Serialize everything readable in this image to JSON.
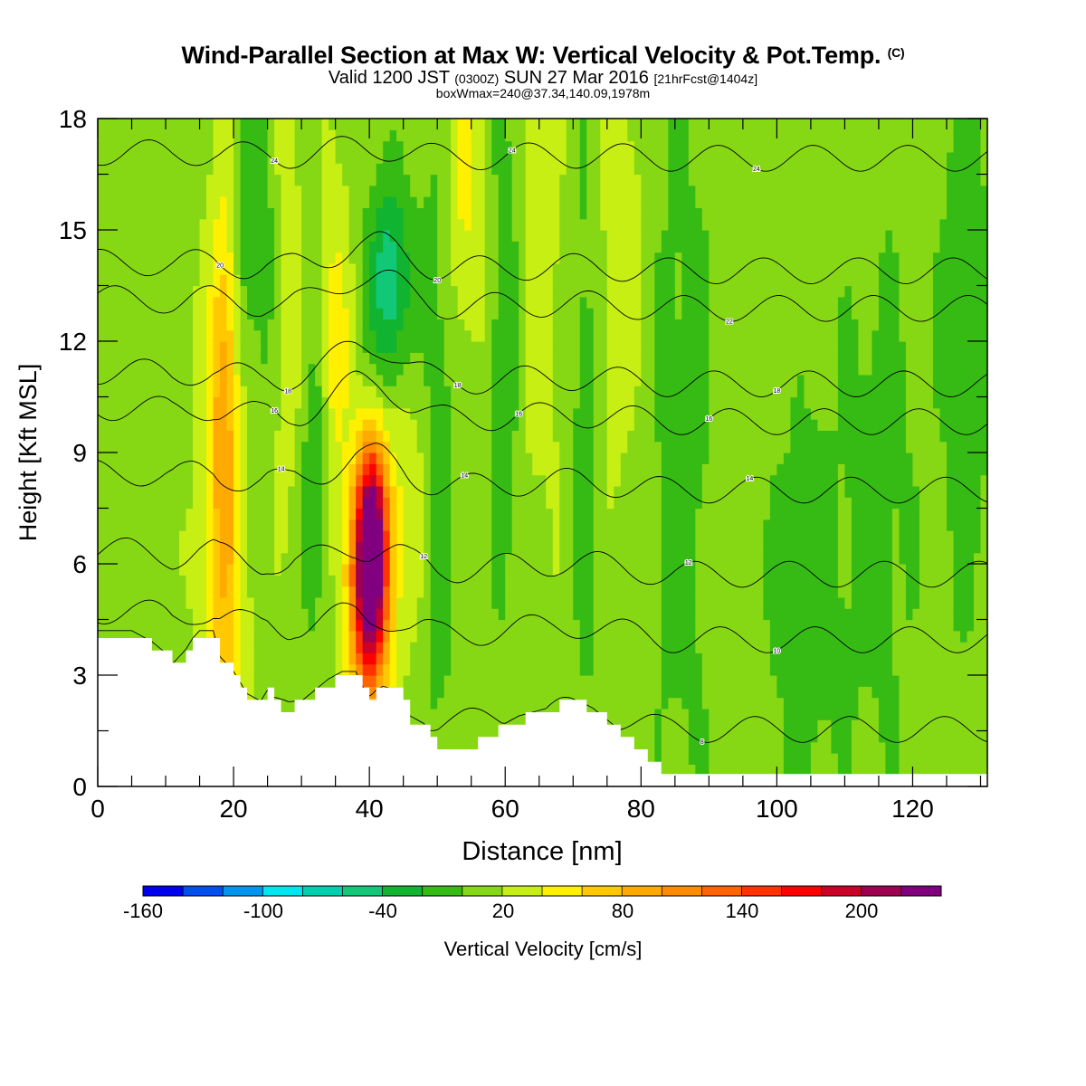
{
  "chart_data": {
    "type": "heatmap",
    "title": "Wind-Parallel Section at Max W: Vertical Velocity & Pot.Temp.",
    "copyright_mark": "(C)",
    "subtitle": {
      "valid_prefix": "Valid 1200 JST",
      "utc": "(0300Z)",
      "valid_date": "SUN 27 Mar 2016",
      "forecast": "[21hrFcst@1404z]"
    },
    "box_info": "boxWmax=240@37.34,140.09,1978m",
    "xlabel": "Distance [nm]",
    "ylabel": "Height [Kft MSL]",
    "xlim": [
      0,
      131
    ],
    "ylim": [
      0,
      18
    ],
    "x_ticks": [
      "0",
      "20",
      "40",
      "60",
      "80",
      "100",
      "120"
    ],
    "y_ticks": [
      "0",
      "3",
      "6",
      "9",
      "12",
      "15",
      "18"
    ],
    "colorbar": {
      "title": "Vertical Velocity [cm/s]",
      "tick_labels": [
        "-160",
        "-100",
        "-40",
        "20",
        "80",
        "140",
        "200"
      ],
      "levels": [
        -160,
        -140,
        -120,
        -100,
        -80,
        -60,
        -40,
        -20,
        0,
        20,
        40,
        60,
        80,
        100,
        120,
        140,
        160,
        180,
        200,
        220,
        240
      ],
      "colors": [
        "#0000f0",
        "#0050f0",
        "#0096f0",
        "#00e6f0",
        "#00d0b0",
        "#10c878",
        "#10b430",
        "#36bb14",
        "#87d814",
        "#c8ef14",
        "#fff000",
        "#ffc800",
        "#ffaa00",
        "#ff8c00",
        "#ff6400",
        "#ff3200",
        "#ff0000",
        "#cd0028",
        "#a00050",
        "#800080"
      ]
    },
    "terrain_kft": [
      [
        0,
        4.1
      ],
      [
        5,
        4.1
      ],
      [
        6,
        4.0
      ],
      [
        8,
        3.8
      ],
      [
        10,
        3.5
      ],
      [
        11,
        3.2
      ],
      [
        13,
        3.6
      ],
      [
        14,
        3.9
      ],
      [
        15,
        4.1
      ],
      [
        17,
        4.1
      ],
      [
        18,
        3.4
      ],
      [
        20,
        3.0
      ],
      [
        21,
        2.7
      ],
      [
        22,
        2.4
      ],
      [
        24,
        2.2
      ],
      [
        25,
        2.5
      ],
      [
        26,
        2.3
      ],
      [
        27,
        2.0
      ],
      [
        28,
        1.9
      ],
      [
        29,
        2.2
      ],
      [
        30,
        2.2
      ],
      [
        32,
        2.5
      ],
      [
        34,
        2.8
      ],
      [
        36,
        3.0
      ],
      [
        38,
        3.0
      ],
      [
        39,
        2.6
      ],
      [
        40,
        2.3
      ],
      [
        41,
        2.5
      ],
      [
        42,
        2.6
      ],
      [
        44,
        2.5
      ],
      [
        45,
        2.2
      ],
      [
        46,
        1.8
      ],
      [
        48,
        1.6
      ],
      [
        49,
        1.3
      ],
      [
        50,
        1.0
      ],
      [
        53,
        1.0
      ],
      [
        56,
        1.2
      ],
      [
        59,
        1.5
      ],
      [
        62,
        1.8
      ],
      [
        64,
        1.9
      ],
      [
        66,
        2.0
      ],
      [
        68,
        2.2
      ],
      [
        71,
        2.2
      ],
      [
        73,
        2.0
      ],
      [
        75,
        1.7
      ],
      [
        77,
        1.4
      ],
      [
        79,
        1.1
      ],
      [
        81,
        0.8
      ],
      [
        82,
        0.6
      ],
      [
        83,
        0.4
      ],
      [
        84,
        0.3
      ],
      [
        131,
        0.3
      ]
    ],
    "w_cells": [
      {
        "x": 18.5,
        "z": 6.0,
        "sx": 2.4,
        "sz": 5.5,
        "w": 55
      },
      {
        "x": 18.5,
        "z": 11.0,
        "sx": 1.2,
        "sz": 3.5,
        "w": 45
      },
      {
        "x": 22.0,
        "z": 15.0,
        "sx": 1.2,
        "sz": 3.5,
        "w": -30
      },
      {
        "x": 24.5,
        "z": 15.0,
        "sx": 1.0,
        "sz": 3.0,
        "w": -25
      },
      {
        "x": 28.0,
        "z": 13.0,
        "sx": 1.3,
        "sz": 4.0,
        "w": 25
      },
      {
        "x": 32.0,
        "z": 8.0,
        "sx": 1.3,
        "sz": 3.0,
        "w": -30
      },
      {
        "x": 35.0,
        "z": 12.0,
        "sx": 1.5,
        "sz": 3.0,
        "w": 40
      },
      {
        "x": 40.0,
        "z": 5.5,
        "sx": 2.0,
        "sz": 2.2,
        "w": 230
      },
      {
        "x": 40.5,
        "z": 7.3,
        "sx": 1.5,
        "sz": 1.6,
        "w": 90
      },
      {
        "x": 43.0,
        "z": 13.5,
        "sx": 2.2,
        "sz": 2.0,
        "w": -70
      },
      {
        "x": 46.0,
        "z": 8.0,
        "sx": 3.0,
        "sz": 3.0,
        "w": 25
      },
      {
        "x": 50.0,
        "z": 9.0,
        "sx": 2.0,
        "sz": 6.0,
        "w": -30
      },
      {
        "x": 54.0,
        "z": 16.0,
        "sx": 2.0,
        "sz": 3.0,
        "w": 35
      },
      {
        "x": 60.0,
        "z": 12.0,
        "sx": 1.5,
        "sz": 6.0,
        "w": -30
      },
      {
        "x": 65.0,
        "z": 14.0,
        "sx": 2.5,
        "sz": 5.0,
        "w": 20
      },
      {
        "x": 72.0,
        "z": 10.0,
        "sx": 1.5,
        "sz": 6.0,
        "w": -25
      },
      {
        "x": 77.0,
        "z": 14.0,
        "sx": 2.5,
        "sz": 4.0,
        "w": 25
      },
      {
        "x": 86.0,
        "z": 9.0,
        "sx": 4.0,
        "sz": 8.0,
        "w": -20
      },
      {
        "x": 104.0,
        "z": 5.0,
        "sx": 4.0,
        "sz": 4.0,
        "w": -25
      },
      {
        "x": 115.0,
        "z": 8.0,
        "sx": 4.0,
        "sz": 6.0,
        "w": -20
      },
      {
        "x": 128.0,
        "z": 12.0,
        "sx": 3.0,
        "sz": 6.0,
        "w": -25
      }
    ],
    "isentropes": [
      {
        "label": "8",
        "z": 2.0,
        "labels_at": [
          89
        ]
      },
      {
        "label": "10",
        "z": 4.3,
        "labels_at": [
          100
        ]
      },
      {
        "label": "12",
        "z": 6.0,
        "labels_at": [
          48,
          87
        ]
      },
      {
        "label": "14",
        "z": 8.2,
        "labels_at": [
          27,
          54,
          96
        ]
      },
      {
        "label": "16",
        "z": 10.0,
        "labels_at": [
          26,
          62,
          90
        ]
      },
      {
        "label": "18",
        "z": 11.0,
        "labels_at": [
          28,
          53,
          100
        ]
      },
      {
        "label": "20",
        "z": 14.0,
        "labels_at": [
          18,
          50
        ]
      },
      {
        "label": "22",
        "z": 13.0,
        "labels_at": [
          93
        ]
      },
      {
        "label": "24",
        "z": 17.0,
        "labels_at": [
          26,
          61,
          97
        ]
      }
    ]
  }
}
